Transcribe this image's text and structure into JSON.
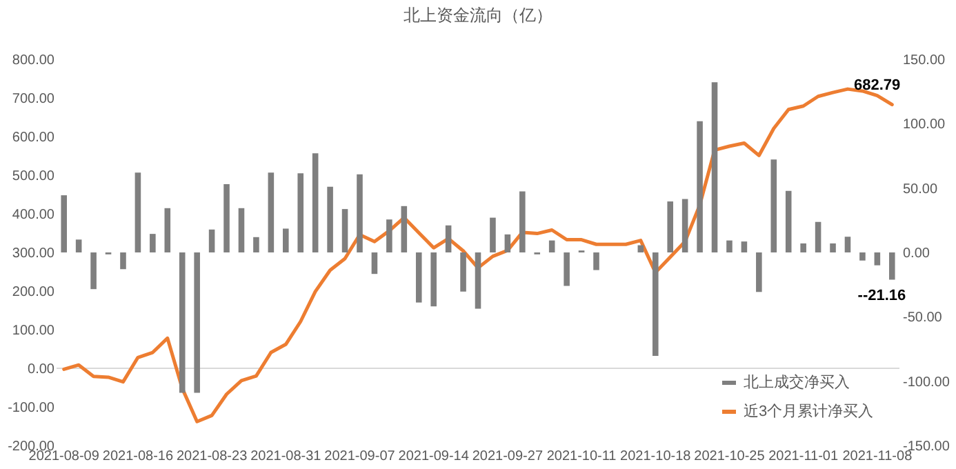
{
  "chart_data": {
    "type": "bar",
    "title": "北上资金流向（亿）",
    "categories": [
      "2021-08-09",
      null,
      null,
      null,
      null,
      "2021-08-16",
      null,
      null,
      null,
      null,
      "2021-08-23",
      null,
      null,
      null,
      null,
      "2021-08-31",
      null,
      null,
      null,
      null,
      "2021-09-07",
      null,
      null,
      null,
      null,
      "2021-09-14",
      null,
      null,
      null,
      null,
      "2021-09-27",
      null,
      null,
      null,
      null,
      "2021-10-11",
      null,
      null,
      null,
      null,
      "2021-10-18",
      null,
      null,
      null,
      null,
      "2021-10-25",
      null,
      null,
      null,
      null,
      "2021-11-01",
      null,
      null,
      null,
      null,
      "2021-11-08",
      null
    ],
    "series": [
      {
        "name": "北上成交净买入",
        "axis": "y2",
        "color": "#7f7f7f",
        "values": [
          44.4,
          10,
          -28.5,
          -1.5,
          -13,
          62,
          14.4,
          34.4,
          -109,
          -109,
          17.8,
          53,
          34.4,
          11.9,
          62,
          18.5,
          61.5,
          77,
          51,
          33.7,
          60.7,
          -16.7,
          25.6,
          36,
          -38.9,
          -41.9,
          21,
          -30.4,
          -43.7,
          27,
          14,
          47.4,
          -1.5,
          9.3,
          -26,
          1.5,
          -13.7,
          0,
          0,
          5.6,
          -80.4,
          39.6,
          41.5,
          101.9,
          132.2,
          9.3,
          8.5,
          -30.7,
          72.2,
          47.8,
          7,
          23.7,
          7,
          12.2,
          -6.3,
          -10,
          -21.16
        ],
        "value_labels": [
          null,
          null,
          null,
          null,
          null,
          null,
          null,
          null,
          null,
          null,
          null,
          null,
          null,
          null,
          null,
          null,
          null,
          null,
          null,
          null,
          null,
          null,
          null,
          null,
          null,
          null,
          null,
          null,
          null,
          null,
          null,
          null,
          null,
          null,
          null,
          null,
          null,
          null,
          null,
          null,
          null,
          null,
          null,
          null,
          null,
          null,
          null,
          null,
          null,
          null,
          null,
          null,
          null,
          null,
          null,
          null,
          "--21.16"
        ]
      },
      {
        "name": "近3个月累计净买入",
        "type": "line",
        "color": "#ed7d31",
        "values": [
          -2.5,
          8.6,
          -21,
          -23,
          -35,
          28,
          41,
          78,
          -52,
          -138,
          -122,
          -67,
          -32,
          -20,
          41,
          62,
          121,
          199,
          254,
          284,
          346,
          328,
          356,
          390,
          351,
          312,
          336,
          304,
          260,
          290,
          305,
          352,
          349,
          358,
          333,
          333,
          321,
          321,
          321,
          331,
          248,
          288,
          328,
          423,
          565,
          575,
          583,
          551,
          621,
          670,
          679,
          704,
          714,
          723,
          718,
          706,
          682.79
        ],
        "value_labels": [
          null,
          null,
          null,
          null,
          null,
          null,
          null,
          null,
          null,
          null,
          null,
          null,
          null,
          null,
          null,
          null,
          null,
          null,
          null,
          null,
          null,
          null,
          null,
          null,
          null,
          null,
          null,
          null,
          null,
          null,
          null,
          null,
          null,
          null,
          null,
          null,
          null,
          null,
          null,
          null,
          null,
          null,
          null,
          null,
          null,
          null,
          null,
          null,
          null,
          null,
          null,
          null,
          null,
          null,
          null,
          null,
          "682.79"
        ]
      }
    ],
    "ylim": [
      -200,
      800
    ],
    "yticks": [
      {
        "value": -200,
        "label": "-200.00"
      },
      {
        "value": -100,
        "label": "-100.00"
      },
      {
        "value": 0,
        "label": "0.00"
      },
      {
        "value": 100,
        "label": "100.00"
      },
      {
        "value": 200,
        "label": "200.00"
      },
      {
        "value": 300,
        "label": "300.00"
      },
      {
        "value": 400,
        "label": "400.00"
      },
      {
        "value": 500,
        "label": "500.00"
      },
      {
        "value": 600,
        "label": "600.00"
      },
      {
        "value": 700,
        "label": "700.00"
      },
      {
        "value": 800,
        "label": "800.00"
      }
    ],
    "y2lim": [
      -150,
      150
    ],
    "y2ticks": [
      {
        "value": -150,
        "label": "-150.00"
      },
      {
        "value": -100,
        "label": "-100.00"
      },
      {
        "value": -50,
        "label": "-50.00"
      },
      {
        "value": 0,
        "label": "0.00"
      },
      {
        "value": 50,
        "label": "50.00"
      },
      {
        "value": 100,
        "label": "100.00"
      },
      {
        "value": 150,
        "label": "150.00"
      }
    ],
    "ref_lines": [
      {
        "axis": "y",
        "value": 0,
        "color": "#d9d9d9"
      }
    ],
    "grid": false,
    "legend": "bottom right"
  }
}
